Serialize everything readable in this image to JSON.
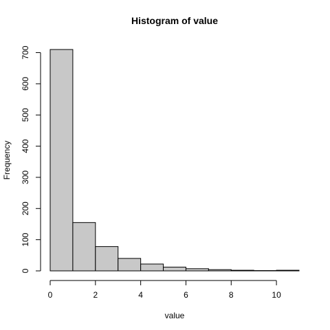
{
  "chart_data": {
    "type": "bar",
    "title": "Histogram of value",
    "xlabel": "value",
    "ylabel": "Frequency",
    "bins": [
      {
        "start": 0,
        "end": 1,
        "count": 710
      },
      {
        "start": 1,
        "end": 2,
        "count": 155
      },
      {
        "start": 2,
        "end": 3,
        "count": 78
      },
      {
        "start": 3,
        "end": 4,
        "count": 40
      },
      {
        "start": 4,
        "end": 5,
        "count": 22
      },
      {
        "start": 5,
        "end": 6,
        "count": 12
      },
      {
        "start": 6,
        "end": 7,
        "count": 7
      },
      {
        "start": 7,
        "end": 8,
        "count": 4
      },
      {
        "start": 8,
        "end": 9,
        "count": 2
      },
      {
        "start": 9,
        "end": 10,
        "count": 1
      },
      {
        "start": 10,
        "end": 11,
        "count": 2
      }
    ],
    "xlim": [
      0,
      11
    ],
    "ylim": [
      0,
      710
    ],
    "x_ticks": [
      "0",
      "2",
      "4",
      "6",
      "8",
      "10"
    ],
    "y_ticks": [
      "0",
      "100",
      "200",
      "300",
      "400",
      "500",
      "600",
      "700"
    ],
    "grid": false,
    "colors": {
      "bar_fill": "#c8c8c8",
      "bar_stroke": "#000000"
    }
  }
}
